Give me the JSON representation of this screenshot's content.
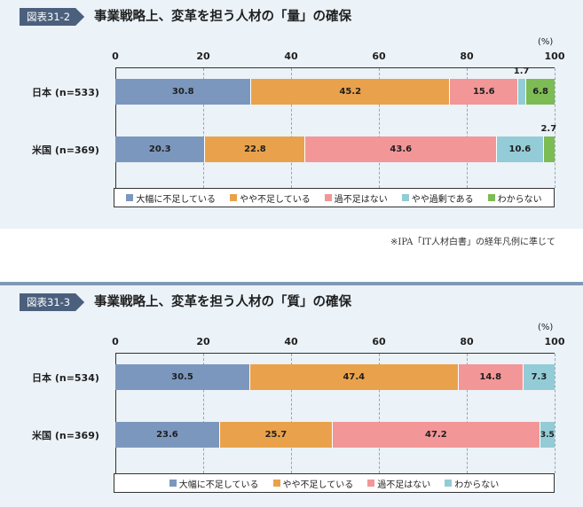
{
  "figures": [
    {
      "label": "図表31-2",
      "title": "事業戦略上、変革を担う人材の「量」の確保",
      "unit": "(%)",
      "ticks": [
        "0",
        "20",
        "40",
        "60",
        "80",
        "100"
      ],
      "legend": [
        "大幅に不足している",
        "やや不足している",
        "過不足はない",
        "やや過剰である",
        "わからない"
      ],
      "colors": [
        "#7b97bd",
        "#e9a24b",
        "#f29698",
        "#93ccd6",
        "#7dbb55"
      ]
    },
    {
      "label": "図表31-3",
      "title": "事業戦略上、変革を担う人材の「質」の確保",
      "unit": "(%)",
      "ticks": [
        "0",
        "20",
        "40",
        "60",
        "80",
        "100"
      ],
      "legend": [
        "大幅に不足している",
        "やや不足している",
        "過不足はない",
        "わからない"
      ],
      "colors": [
        "#7b97bd",
        "#e9a24b",
        "#f29698",
        "#93ccd6"
      ]
    }
  ],
  "note": "※IPA「IT人材白書」の経年凡例に準じて",
  "chart_data": [
    {
      "type": "bar",
      "orientation": "horizontal",
      "stacked": true,
      "title": "事業戦略上、変革を担う人材の「量」の確保",
      "categories": [
        "日本 (n=533)",
        "米国 (n=369)"
      ],
      "xlim": [
        0,
        100
      ],
      "series": [
        {
          "name": "大幅に不足している",
          "values": [
            30.8,
            20.3
          ]
        },
        {
          "name": "やや不足している",
          "values": [
            45.2,
            22.8
          ]
        },
        {
          "name": "過不足はない",
          "values": [
            15.6,
            43.6
          ]
        },
        {
          "name": "やや過剰である",
          "values": [
            1.7,
            10.6
          ]
        },
        {
          "name": "わからない",
          "values": [
            6.8,
            2.7
          ]
        }
      ],
      "value_labels": [
        [
          "30.8",
          "45.2",
          "15.6",
          "1.7",
          "6.8"
        ],
        [
          "20.3",
          "22.8",
          "43.6",
          "10.6",
          "2.7"
        ]
      ],
      "legend_position": "bottom"
    },
    {
      "type": "bar",
      "orientation": "horizontal",
      "stacked": true,
      "title": "事業戦略上、変革を担う人材の「質」の確保",
      "categories": [
        "日本 (n=534)",
        "米国 (n=369)"
      ],
      "xlim": [
        0,
        100
      ],
      "series": [
        {
          "name": "大幅に不足している",
          "values": [
            30.5,
            23.6
          ]
        },
        {
          "name": "やや不足している",
          "values": [
            47.4,
            25.7
          ]
        },
        {
          "name": "過不足はない",
          "values": [
            14.8,
            47.2
          ]
        },
        {
          "name": "わからない",
          "values": [
            7.3,
            3.5
          ]
        }
      ],
      "value_labels": [
        [
          "30.5",
          "47.4",
          "14.8",
          "7.3"
        ],
        [
          "23.6",
          "25.7",
          "47.2",
          "3.5"
        ]
      ],
      "legend_position": "bottom"
    }
  ]
}
